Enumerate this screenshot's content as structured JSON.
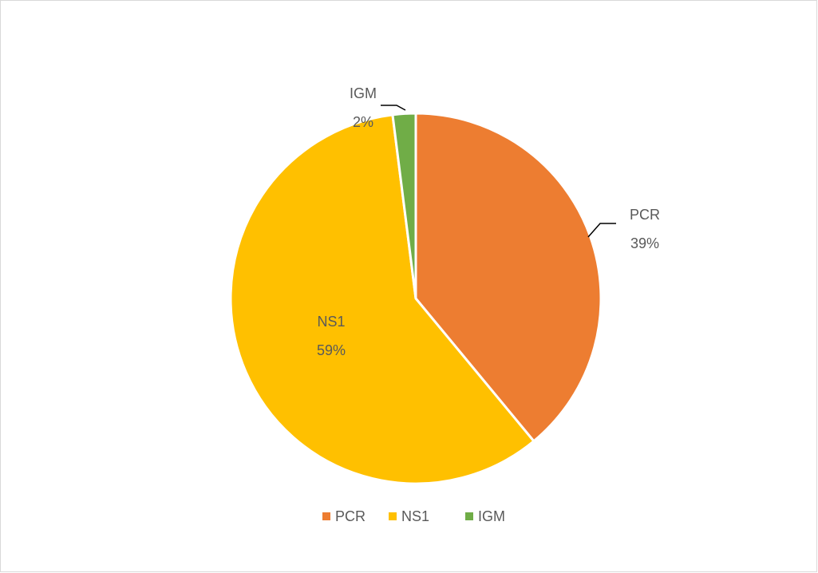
{
  "chart_data": {
    "type": "pie",
    "categories": [
      "PCR",
      "NS1",
      "IGM"
    ],
    "values": [
      39,
      59,
      2
    ],
    "value_labels": [
      "39%",
      "59%",
      "2%"
    ],
    "colors": [
      "#ed7d31",
      "#ffc000",
      "#70ad47"
    ],
    "legend": "bottom"
  }
}
